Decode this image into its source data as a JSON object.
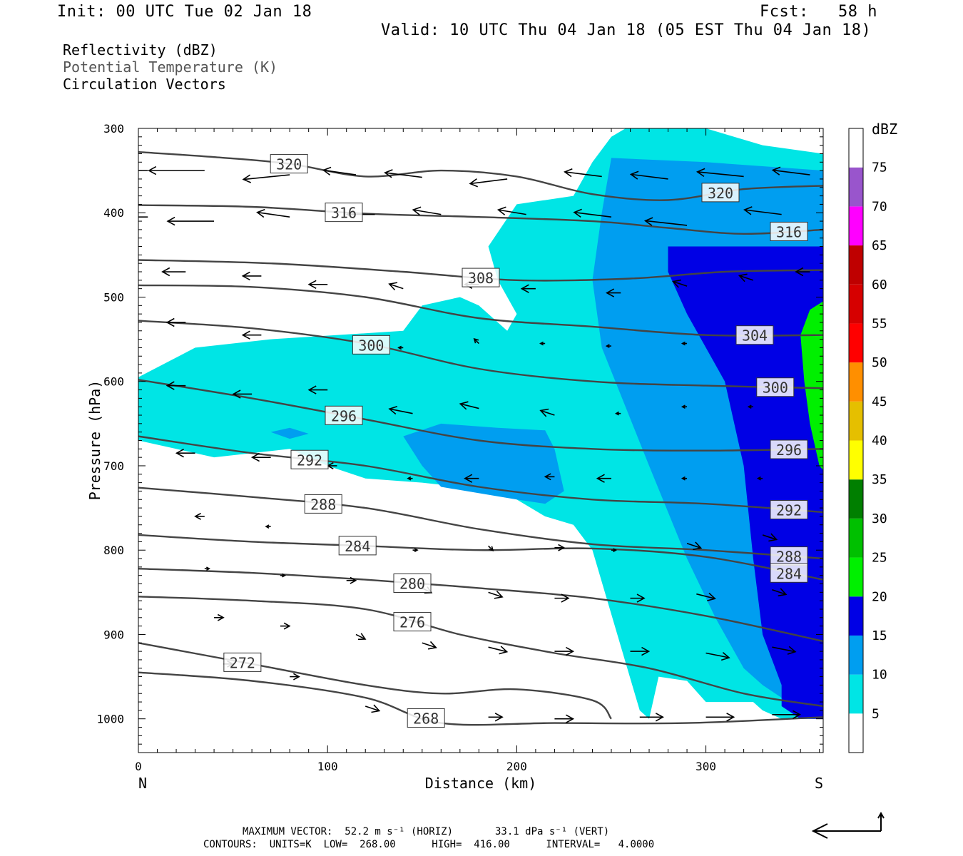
{
  "header": {
    "init": "Init: 00 UTC Tue 02 Jan 18",
    "fcst": "Fcst:   58 h",
    "valid": "Valid: 10 UTC Thu 04 Jan 18 (05 EST Thu 04 Jan 18)"
  },
  "legend": {
    "line1": "Reflectivity (dBZ)",
    "line2": "Potential Temperature (K)",
    "line3": "Circulation Vectors"
  },
  "footer": {
    "line1": "MAXIMUM VECTOR:  52.2 m s⁻¹ (HORIZ)       33.1 dPa s⁻¹ (VERT)",
    "line2": "CONTOURS:  UNITS=K  LOW=  268.00      HIGH=  416.00      INTERVAL=   4.0000"
  },
  "chart_data": {
    "type": "contour-cross-section",
    "xlabel": "Distance (km)",
    "ylabel": "Pressure (hPa)",
    "xlim": [
      0,
      362
    ],
    "ylim": [
      1040,
      300
    ],
    "x_ticks": [
      0,
      100,
      200,
      300
    ],
    "x_tick_labels": [
      "0",
      "100",
      "200",
      "300"
    ],
    "y_ticks": [
      300,
      400,
      500,
      600,
      700,
      800,
      900,
      1000
    ],
    "y_tick_labels": [
      "300",
      "400",
      "500",
      "600",
      "700",
      "800",
      "900",
      "1000"
    ],
    "left_end_label": "N",
    "right_end_label": "S",
    "colorbar": {
      "unit": "dBZ",
      "levels": [
        "5",
        "10",
        "15",
        "20",
        "25",
        "30",
        "35",
        "40",
        "45",
        "50",
        "55",
        "60",
        "65",
        "70",
        "75"
      ],
      "colors": [
        "#ffffff",
        "#00e5e5",
        "#009ef0",
        "#0000e5",
        "#00f000",
        "#00c000",
        "#007f00",
        "#ffff00",
        "#e5bf00",
        "#ff8f00",
        "#ff0000",
        "#d60000",
        "#bf0000",
        "#ff00ff",
        "#9955cc",
        "#ffffff"
      ]
    },
    "theta_contours": [
      {
        "label": "320",
        "points": [
          [
            0,
            328
          ],
          [
            40,
            334
          ],
          [
            80,
            342
          ],
          [
            120,
            357
          ],
          [
            160,
            350
          ],
          [
            200,
            357
          ],
          [
            240,
            378
          ],
          [
            280,
            385
          ],
          [
            320,
            372
          ],
          [
            362,
            368
          ]
        ]
      },
      {
        "label": "316",
        "points": [
          [
            0,
            391
          ],
          [
            60,
            393
          ],
          [
            120,
            401
          ],
          [
            180,
            405
          ],
          [
            240,
            410
          ],
          [
            280,
            418
          ],
          [
            320,
            425
          ],
          [
            362,
            420
          ]
        ]
      },
      {
        "label": "308",
        "points": [
          [
            0,
            456
          ],
          [
            70,
            460
          ],
          [
            140,
            470
          ],
          [
            200,
            480
          ],
          [
            260,
            478
          ],
          [
            310,
            470
          ],
          [
            362,
            468
          ]
        ]
      },
      {
        "label": "304",
        "points": [
          [
            0,
            486
          ],
          [
            60,
            488
          ],
          [
            120,
            500
          ],
          [
            180,
            525
          ],
          [
            240,
            535
          ],
          [
            300,
            545
          ],
          [
            362,
            545
          ]
        ]
      },
      {
        "label": "300",
        "points": [
          [
            0,
            528
          ],
          [
            60,
            537
          ],
          [
            120,
            555
          ],
          [
            180,
            585
          ],
          [
            240,
            600
          ],
          [
            300,
            605
          ],
          [
            362,
            608
          ]
        ]
      },
      {
        "label": "296",
        "points": [
          [
            0,
            598
          ],
          [
            60,
            620
          ],
          [
            120,
            645
          ],
          [
            180,
            670
          ],
          [
            240,
            680
          ],
          [
            300,
            682
          ],
          [
            362,
            680
          ]
        ]
      },
      {
        "label": "292",
        "points": [
          [
            0,
            665
          ],
          [
            60,
            685
          ],
          [
            120,
            700
          ],
          [
            180,
            725
          ],
          [
            240,
            740
          ],
          [
            300,
            745
          ],
          [
            362,
            755
          ]
        ]
      },
      {
        "label": "288",
        "points": [
          [
            0,
            726
          ],
          [
            60,
            737
          ],
          [
            120,
            750
          ],
          [
            180,
            775
          ],
          [
            240,
            793
          ],
          [
            300,
            800
          ],
          [
            362,
            810
          ]
        ]
      },
      {
        "label": "284",
        "points": [
          [
            0,
            782
          ],
          [
            60,
            790
          ],
          [
            120,
            795
          ],
          [
            180,
            800
          ],
          [
            240,
            798
          ],
          [
            300,
            808
          ],
          [
            362,
            835
          ]
        ]
      },
      {
        "label": "280",
        "points": [
          [
            0,
            822
          ],
          [
            60,
            827
          ],
          [
            120,
            835
          ],
          [
            180,
            845
          ],
          [
            240,
            857
          ],
          [
            300,
            878
          ],
          [
            362,
            908
          ]
        ]
      },
      {
        "label": "276",
        "points": [
          [
            0,
            855
          ],
          [
            60,
            860
          ],
          [
            120,
            870
          ],
          [
            170,
            900
          ],
          [
            220,
            922
          ],
          [
            270,
            940
          ],
          [
            320,
            970
          ],
          [
            362,
            985
          ]
        ]
      },
      {
        "label": "272",
        "points": [
          [
            0,
            910
          ],
          [
            60,
            935
          ],
          [
            120,
            960
          ],
          [
            160,
            970
          ],
          [
            200,
            965
          ],
          [
            240,
            978
          ],
          [
            250,
            1000
          ]
        ]
      },
      {
        "label": "268",
        "points": [
          [
            0,
            945
          ],
          [
            60,
            955
          ],
          [
            120,
            975
          ],
          [
            160,
            1005
          ],
          [
            220,
            1005
          ],
          [
            290,
            1005
          ],
          [
            362,
            998
          ]
        ]
      }
    ],
    "reflectivity_regions": [
      {
        "level": "5",
        "outline": [
          [
            0,
            595
          ],
          [
            30,
            560
          ],
          [
            70,
            550
          ],
          [
            140,
            540
          ],
          [
            150,
            510
          ],
          [
            170,
            500
          ],
          [
            180,
            510
          ],
          [
            195,
            540
          ],
          [
            200,
            520
          ],
          [
            190,
            480
          ],
          [
            185,
            440
          ],
          [
            200,
            390
          ],
          [
            230,
            380
          ],
          [
            240,
            340
          ],
          [
            250,
            310
          ],
          [
            265,
            290
          ],
          [
            300,
            300
          ],
          [
            330,
            320
          ],
          [
            362,
            330
          ],
          [
            362,
            1000
          ],
          [
            340,
            1000
          ],
          [
            330,
            990
          ],
          [
            325,
            980
          ],
          [
            300,
            980
          ],
          [
            290,
            955
          ],
          [
            275,
            950
          ],
          [
            270,
            1000
          ],
          [
            265,
            990
          ],
          [
            240,
            800
          ],
          [
            230,
            770
          ],
          [
            215,
            760
          ],
          [
            200,
            740
          ],
          [
            190,
            730
          ],
          [
            170,
            725
          ],
          [
            150,
            720
          ],
          [
            120,
            715
          ],
          [
            100,
            700
          ],
          [
            80,
            680
          ],
          [
            40,
            690
          ],
          [
            20,
            680
          ],
          [
            0,
            670
          ]
        ]
      },
      {
        "level": "10",
        "outline": [
          [
            250,
            335
          ],
          [
            300,
            340
          ],
          [
            362,
            350
          ],
          [
            362,
            970
          ],
          [
            340,
            975
          ],
          [
            330,
            960
          ],
          [
            320,
            940
          ],
          [
            305,
            880
          ],
          [
            290,
            810
          ],
          [
            270,
            700
          ],
          [
            245,
            560
          ],
          [
            240,
            480
          ],
          [
            245,
            400
          ]
        ]
      },
      {
        "level": "15",
        "outline": [
          [
            280,
            440
          ],
          [
            362,
            440
          ],
          [
            362,
            1000
          ],
          [
            350,
            1000
          ],
          [
            340,
            985
          ],
          [
            340,
            960
          ],
          [
            330,
            900
          ],
          [
            325,
            810
          ],
          [
            320,
            700
          ],
          [
            310,
            600
          ],
          [
            290,
            520
          ],
          [
            280,
            470
          ]
        ]
      },
      {
        "level": "20",
        "outline": [
          [
            362,
            505
          ],
          [
            355,
            515
          ],
          [
            350,
            545
          ],
          [
            352,
            600
          ],
          [
            355,
            650
          ],
          [
            360,
            700
          ],
          [
            362,
            705
          ]
        ]
      },
      {
        "level": "10",
        "outline": [
          [
            140,
            665
          ],
          [
            160,
            650
          ],
          [
            190,
            655
          ],
          [
            215,
            658
          ],
          [
            220,
            680
          ],
          [
            225,
            730
          ],
          [
            215,
            745
          ],
          [
            200,
            740
          ],
          [
            160,
            725
          ],
          [
            150,
            700
          ]
        ]
      },
      {
        "level": "10",
        "outline": [
          [
            70,
            660
          ],
          [
            80,
            655
          ],
          [
            90,
            662
          ],
          [
            80,
            668
          ]
        ]
      }
    ],
    "vectors": [
      [
        5,
        350,
        -10,
        0
      ],
      [
        35,
        350,
        -12,
        0
      ],
      [
        80,
        355,
        -10,
        1
      ],
      [
        115,
        355,
        -7,
        -1
      ],
      [
        150,
        358,
        -8,
        -1
      ],
      [
        195,
        360,
        -8,
        1
      ],
      [
        245,
        357,
        -8,
        -1
      ],
      [
        280,
        360,
        -8,
        -1
      ],
      [
        320,
        357,
        -10,
        -1
      ],
      [
        355,
        355,
        -8,
        -1
      ],
      [
        5,
        405,
        -10,
        0
      ],
      [
        40,
        410,
        -10,
        0
      ],
      [
        80,
        405,
        -7,
        -1
      ],
      [
        125,
        402,
        -6,
        0
      ],
      [
        160,
        402,
        -6,
        -1
      ],
      [
        205,
        402,
        -6,
        -1
      ],
      [
        250,
        405,
        -8,
        -1
      ],
      [
        290,
        415,
        -9,
        -1
      ],
      [
        340,
        402,
        -8,
        -1
      ],
      [
        25,
        470,
        -5,
        0
      ],
      [
        65,
        475,
        -4,
        0
      ],
      [
        100,
        485,
        -4,
        0
      ],
      [
        140,
        490,
        -3,
        -1
      ],
      [
        180,
        485,
        -3,
        0
      ],
      [
        210,
        490,
        -3,
        0
      ],
      [
        255,
        495,
        -3,
        0
      ],
      [
        290,
        487,
        -3,
        -1
      ],
      [
        325,
        480,
        -3,
        -1
      ],
      [
        355,
        470,
        -3,
        0
      ],
      [
        25,
        530,
        -4,
        0
      ],
      [
        65,
        545,
        -4,
        0
      ],
      [
        140,
        560,
        -1,
        0
      ],
      [
        180,
        555,
        -1,
        -1
      ],
      [
        215,
        555,
        -1,
        0
      ],
      [
        250,
        558,
        -1,
        0
      ],
      [
        290,
        555,
        -1,
        0
      ],
      [
        325,
        550,
        -1,
        0
      ],
      [
        25,
        605,
        -4,
        0
      ],
      [
        60,
        615,
        -4,
        0
      ],
      [
        100,
        610,
        -4,
        0
      ],
      [
        145,
        638,
        -5,
        -1
      ],
      [
        180,
        632,
        -4,
        -1
      ],
      [
        220,
        640,
        -3,
        -1
      ],
      [
        255,
        638,
        -1,
        0
      ],
      [
        290,
        630,
        -1,
        0
      ],
      [
        325,
        630,
        -1,
        0
      ],
      [
        30,
        685,
        -4,
        0
      ],
      [
        70,
        690,
        -4,
        0
      ],
      [
        105,
        700,
        -2,
        0
      ],
      [
        145,
        715,
        -1,
        0
      ],
      [
        180,
        715,
        -3,
        0
      ],
      [
        220,
        713,
        -2,
        0
      ],
      [
        250,
        715,
        -3,
        0
      ],
      [
        290,
        715,
        -1,
        0
      ],
      [
        330,
        715,
        -1,
        0
      ],
      [
        35,
        760,
        -2,
        0
      ],
      [
        70,
        772,
        -1,
        0
      ],
      [
        145,
        800,
        1,
        0
      ],
      [
        185,
        795,
        1,
        1
      ],
      [
        220,
        797,
        2,
        0
      ],
      [
        250,
        800,
        1,
        0
      ],
      [
        290,
        792,
        3,
        1
      ],
      [
        330,
        782,
        3,
        1
      ],
      [
        35,
        822,
        1,
        0
      ],
      [
        75,
        830,
        1,
        0
      ],
      [
        110,
        836,
        2,
        0
      ],
      [
        150,
        845,
        2,
        1
      ],
      [
        185,
        850,
        3,
        1
      ],
      [
        220,
        857,
        3,
        0
      ],
      [
        260,
        857,
        3,
        0
      ],
      [
        295,
        852,
        4,
        1
      ],
      [
        335,
        847,
        3,
        1
      ],
      [
        40,
        880,
        2,
        0
      ],
      [
        75,
        890,
        2,
        0
      ],
      [
        115,
        900,
        2,
        1
      ],
      [
        150,
        910,
        3,
        1
      ],
      [
        185,
        915,
        4,
        1
      ],
      [
        220,
        920,
        4,
        0
      ],
      [
        260,
        920,
        4,
        0
      ],
      [
        300,
        922,
        5,
        1
      ],
      [
        335,
        915,
        5,
        1
      ],
      [
        45,
        935,
        2,
        0
      ],
      [
        80,
        950,
        2,
        0
      ],
      [
        120,
        985,
        3,
        1
      ],
      [
        185,
        998,
        3,
        0
      ],
      [
        220,
        1000,
        4,
        0
      ],
      [
        265,
        998,
        5,
        0
      ],
      [
        300,
        998,
        6,
        0
      ],
      [
        335,
        995,
        6,
        0
      ]
    ],
    "max_vector": {
      "horiz": "52.2 m s⁻¹",
      "vert": "33.1 dPa s⁻¹"
    },
    "contour_info": {
      "units": "K",
      "low": "268.00",
      "high": "416.00",
      "interval": "4.0000"
    }
  }
}
